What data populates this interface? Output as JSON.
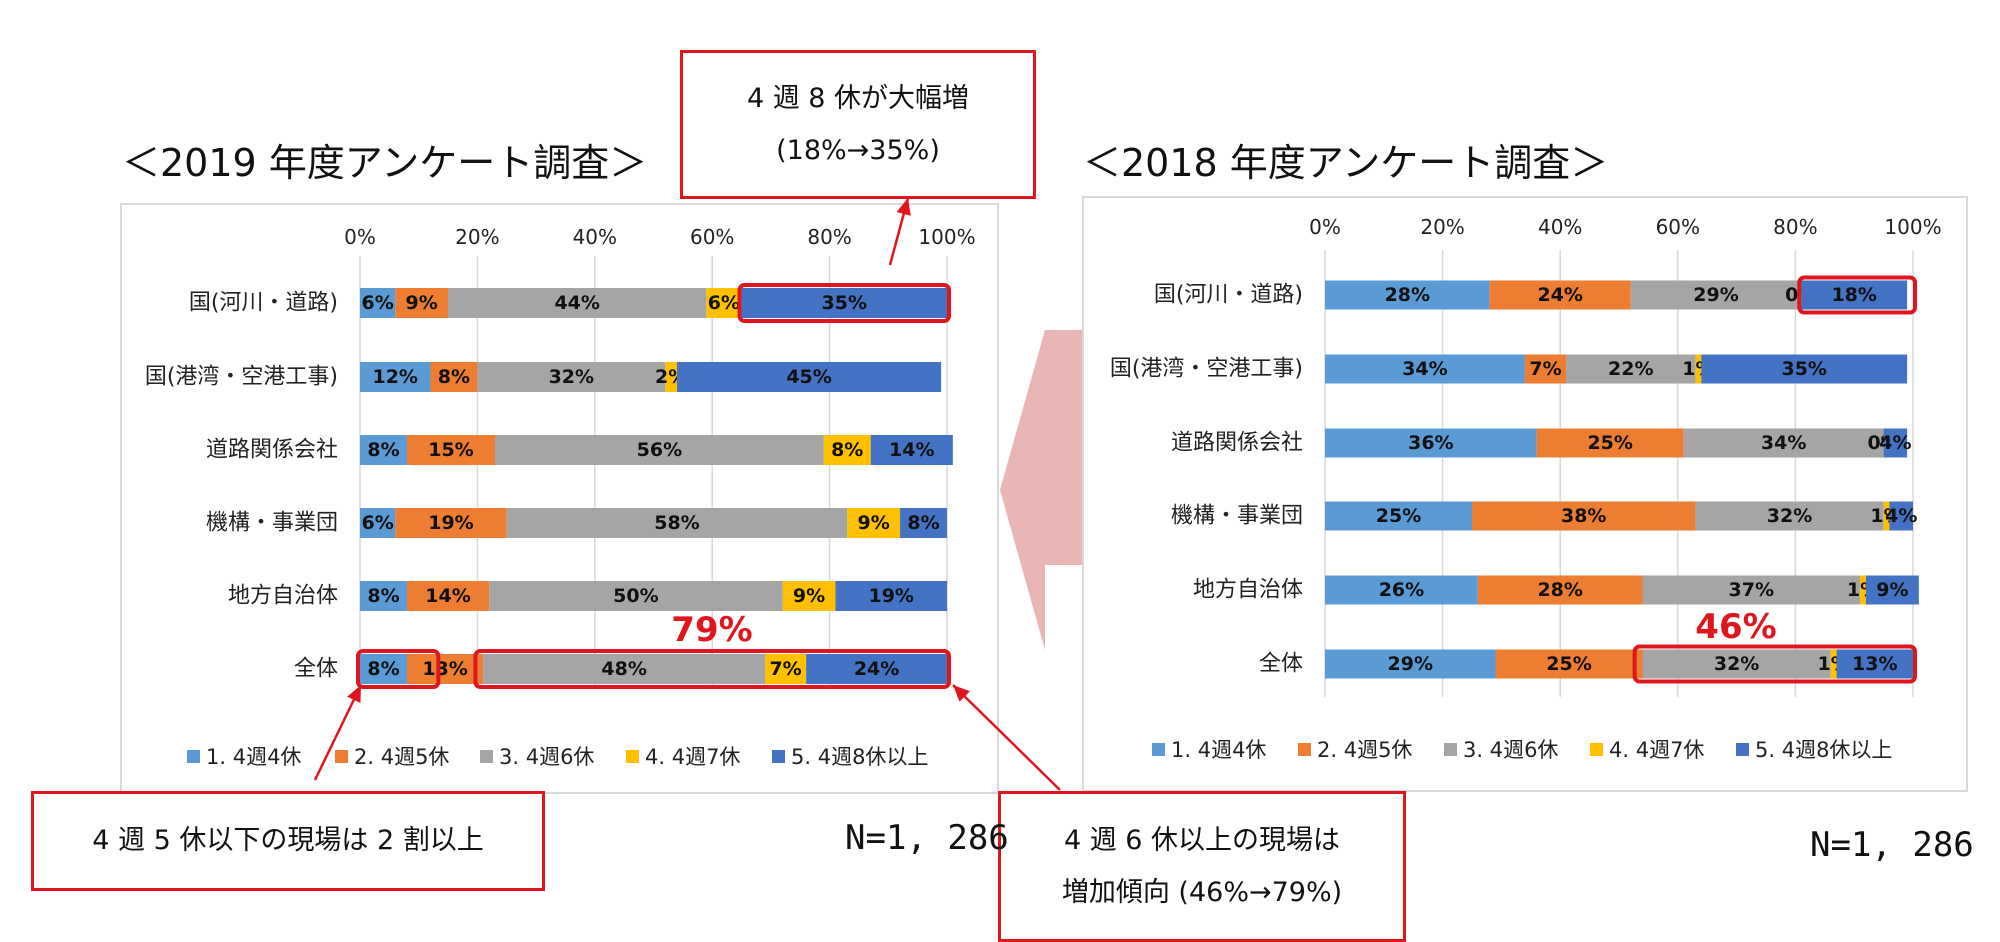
{
  "titles": {
    "left": "＜2019 年度アンケート調査＞",
    "right": "＜2018 年度アンケート調査＞"
  },
  "callouts": {
    "top": {
      "line1": "4 週 8 休が大幅増",
      "line2": "(18%→35%)"
    },
    "bottom_left": {
      "line1": "4 週 5 休以下の現場は 2 割以上"
    },
    "bottom_right": {
      "line1": "4 週 6 休以上の現場は",
      "line2": "増加傾向 (46%→79%)"
    }
  },
  "sample_left": "N=1, 286",
  "sample_right": "N=1, 286",
  "colors": {
    "s1": "#5b9bd5",
    "s2": "#ed7d31",
    "s3": "#a5a5a5",
    "s4": "#ffc000",
    "s5": "#4472c4",
    "highlight": "#e0161e",
    "arrow": "#e9b5b5"
  },
  "chart_data": [
    {
      "type": "bar",
      "orientation": "horizontal-stacked-100",
      "title": "＜2019 年度アンケート調査＞",
      "categories": [
        "国(河川・道路)",
        "国(港湾・空港工事)",
        "道路関係会社",
        "機構・事業団",
        "地方自治体",
        "全体"
      ],
      "xlim": [
        0,
        100
      ],
      "xticks": [
        "0%",
        "20%",
        "40%",
        "60%",
        "80%",
        "100%"
      ],
      "series": [
        {
          "name": "1. 4週4休",
          "values": [
            6,
            12,
            8,
            6,
            8,
            8
          ]
        },
        {
          "name": "2. 4週5休",
          "values": [
            9,
            8,
            15,
            19,
            14,
            13
          ]
        },
        {
          "name": "3. 4週6休",
          "values": [
            44,
            32,
            56,
            58,
            50,
            48
          ]
        },
        {
          "name": "4. 4週7休",
          "values": [
            6,
            2,
            8,
            9,
            9,
            7
          ]
        },
        {
          "name": "5. 4週8休以上",
          "values": [
            35,
            45,
            14,
            8,
            19,
            24
          ]
        }
      ],
      "annotation": "79%",
      "legend": "bottom",
      "grid": true
    },
    {
      "type": "bar",
      "orientation": "horizontal-stacked-100",
      "title": "＜2018 年度アンケート調査＞",
      "categories": [
        "国(河川・道路)",
        "国(港湾・空港工事)",
        "道路関係会社",
        "機構・事業団",
        "地方自治体",
        "全体"
      ],
      "xlim": [
        0,
        100
      ],
      "xticks": [
        "0%",
        "20%",
        "40%",
        "60%",
        "80%",
        "100%"
      ],
      "series": [
        {
          "name": "1. 4週4休",
          "values": [
            28,
            34,
            36,
            25,
            26,
            29
          ]
        },
        {
          "name": "2. 4週5休",
          "values": [
            24,
            7,
            25,
            38,
            28,
            25
          ]
        },
        {
          "name": "3. 4週6休",
          "values": [
            29,
            22,
            34,
            32,
            37,
            32
          ]
        },
        {
          "name": "4. 4週7休",
          "values": [
            0,
            1,
            0,
            1,
            1,
            1
          ]
        },
        {
          "name": "5. 4週8休以上",
          "values": [
            18,
            35,
            4,
            4,
            9,
            13
          ]
        }
      ],
      "annotation": "46%",
      "legend": "bottom",
      "grid": true
    }
  ]
}
